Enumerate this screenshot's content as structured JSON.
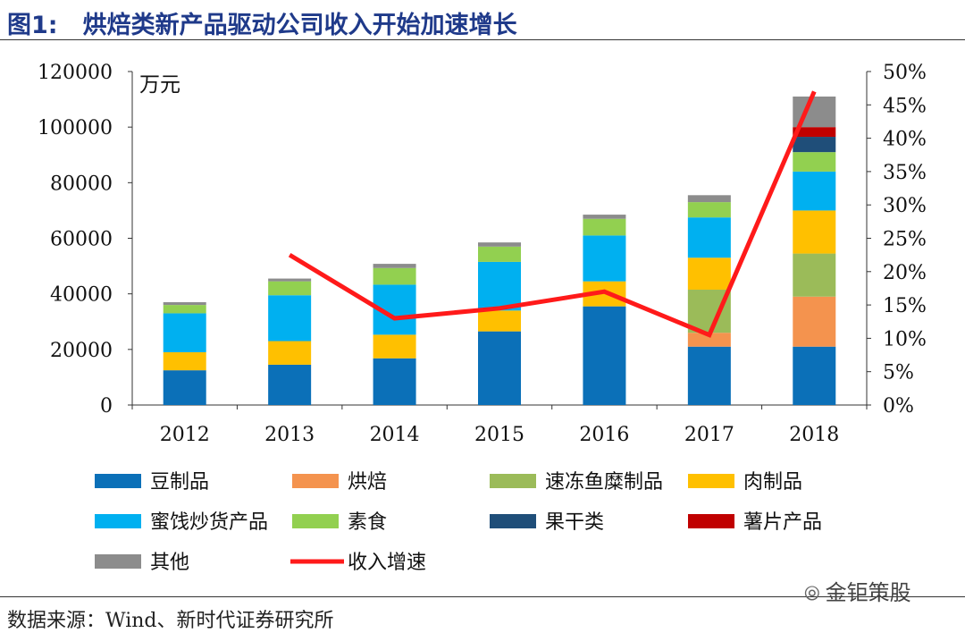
{
  "header": {
    "figure_number": "图1:",
    "title": "烘焙类新产品驱动公司收入开始加速增长"
  },
  "source": "数据来源：Wind、新时代证券研究所",
  "watermark": "金钜策股",
  "chart_data": {
    "type": "bar",
    "stacked": true,
    "categories": [
      "2012",
      "2013",
      "2014",
      "2015",
      "2016",
      "2017",
      "2018"
    ],
    "y_unit_label": "万元",
    "ylim": [
      0,
      120000
    ],
    "yticks": [
      "0",
      "20000",
      "40000",
      "60000",
      "80000",
      "100000",
      "120000"
    ],
    "y2lim": [
      0,
      50
    ],
    "y2ticks": [
      "0%",
      "5%",
      "10%",
      "15%",
      "20%",
      "25%",
      "30%",
      "35%",
      "40%",
      "45%",
      "50%"
    ],
    "grid": false,
    "legend_position": "bottom",
    "series": [
      {
        "name": "豆制品",
        "color": "#0b70b8",
        "values": [
          12500,
          14500,
          16800,
          26500,
          35500,
          21000,
          21000
        ]
      },
      {
        "name": "烘焙",
        "color": "#f4934e",
        "values": [
          0,
          0,
          0,
          0,
          0,
          5000,
          18000
        ]
      },
      {
        "name": "速冻鱼糜制品",
        "color": "#9bbb59",
        "values": [
          0,
          0,
          0,
          0,
          0,
          15500,
          15500
        ]
      },
      {
        "name": "肉制品",
        "color": "#ffc000",
        "values": [
          6500,
          8500,
          8500,
          7500,
          9000,
          11500,
          15500
        ]
      },
      {
        "name": "蜜饯炒货产品",
        "color": "#00b0f0",
        "values": [
          14000,
          16500,
          18000,
          17500,
          16500,
          14500,
          14000
        ]
      },
      {
        "name": "素食",
        "color": "#92d050",
        "values": [
          3000,
          5000,
          6000,
          5500,
          6000,
          5500,
          7000
        ]
      },
      {
        "name": "果干类",
        "color": "#1f4e79",
        "values": [
          0,
          0,
          0,
          0,
          0,
          0,
          5500
        ]
      },
      {
        "name": "薯片产品",
        "color": "#c00000",
        "values": [
          0,
          0,
          0,
          0,
          0,
          0,
          3500
        ]
      },
      {
        "name": "其他",
        "color": "#8c8c8c",
        "values": [
          1000,
          1000,
          1500,
          1500,
          1500,
          2500,
          11000
        ]
      }
    ],
    "line_series": {
      "name": "收入增速",
      "color": "#ff1a1a",
      "axis": "right",
      "unit": "%",
      "values": [
        null,
        22.5,
        13,
        14.5,
        17,
        10.5,
        47
      ]
    }
  }
}
